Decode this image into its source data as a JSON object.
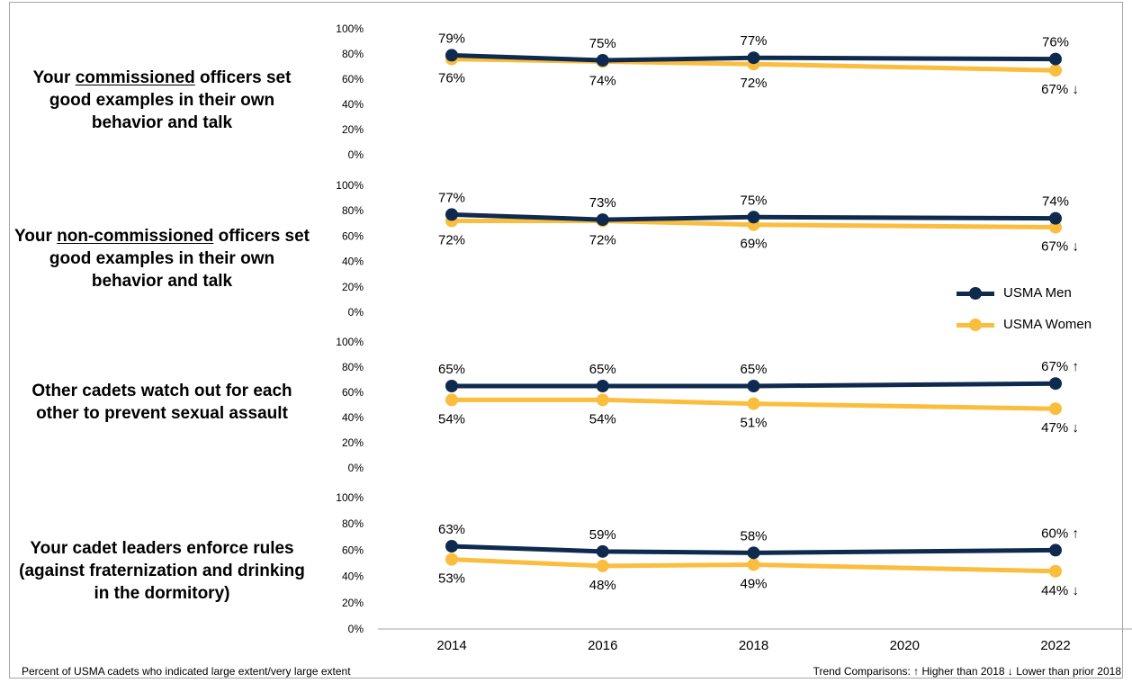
{
  "colors": {
    "men": "#0f2a4f",
    "women": "#fbbd3e",
    "axis": "#a6a6a6",
    "frame": "#a6a6a6"
  },
  "questions": [
    {
      "pre": "Your ",
      "underlined": "commissioned",
      "post": " officers set good examples in their own behavior and talk"
    },
    {
      "pre": "Your ",
      "underlined": "non-commissioned",
      "post": " officers set good examples in their own behavior and talk"
    },
    {
      "pre": "Other cadets watch out for each other to prevent sexual assault",
      "underlined": "",
      "post": ""
    },
    {
      "pre": "Your cadet leaders enforce rules (against fraternization and drinking in the dormitory)",
      "underlined": "",
      "post": ""
    }
  ],
  "legend": {
    "men": "USMA Men",
    "women": "USMA Women"
  },
  "footer": {
    "left": "Percent of USMA cadets who indicated large extent/very large extent",
    "right": "Trend Comparisons:   ↑ Higher than 2018  ↓ Lower than prior 2018"
  },
  "chart_data": [
    {
      "type": "line",
      "x": [
        2014,
        2016,
        2018,
        2022
      ],
      "ylim": [
        0,
        100
      ],
      "yticks": [
        "0%",
        "20%",
        "40%",
        "60%",
        "80%",
        "100%"
      ],
      "series": [
        {
          "name": "USMA Men",
          "values": [
            79,
            75,
            77,
            76
          ],
          "labels": [
            "79%",
            "75%",
            "77%",
            "76%"
          ],
          "markers": [
            "",
            "",
            "",
            ""
          ]
        },
        {
          "name": "USMA Women",
          "values": [
            76,
            74,
            72,
            67
          ],
          "labels": [
            "76%",
            "74%",
            "72%",
            "67%"
          ],
          "markers": [
            "",
            "",
            "",
            "↓"
          ]
        }
      ]
    },
    {
      "type": "line",
      "x": [
        2014,
        2016,
        2018,
        2022
      ],
      "ylim": [
        0,
        100
      ],
      "yticks": [
        "0%",
        "20%",
        "40%",
        "60%",
        "80%",
        "100%"
      ],
      "series": [
        {
          "name": "USMA Men",
          "values": [
            77,
            73,
            75,
            74
          ],
          "labels": [
            "77%",
            "73%",
            "75%",
            "74%"
          ],
          "markers": [
            "",
            "",
            "",
            ""
          ]
        },
        {
          "name": "USMA Women",
          "values": [
            72,
            72,
            69,
            67
          ],
          "labels": [
            "72%",
            "72%",
            "69%",
            "67%"
          ],
          "markers": [
            "",
            "",
            "",
            "↓"
          ]
        }
      ]
    },
    {
      "type": "line",
      "x": [
        2014,
        2016,
        2018,
        2022
      ],
      "ylim": [
        0,
        100
      ],
      "yticks": [
        "0%",
        "20%",
        "40%",
        "60%",
        "80%",
        "100%"
      ],
      "series": [
        {
          "name": "USMA Men",
          "values": [
            65,
            65,
            65,
            67
          ],
          "labels": [
            "65%",
            "65%",
            "65%",
            "67%"
          ],
          "markers": [
            "",
            "",
            "",
            "↑"
          ]
        },
        {
          "name": "USMA Women",
          "values": [
            54,
            54,
            51,
            47
          ],
          "labels": [
            "54%",
            "54%",
            "51%",
            "47%"
          ],
          "markers": [
            "",
            "",
            "",
            "↓"
          ]
        }
      ]
    },
    {
      "type": "line",
      "x": [
        2014,
        2016,
        2018,
        2022
      ],
      "ylim": [
        0,
        100
      ],
      "yticks": [
        "0%",
        "20%",
        "40%",
        "60%",
        "80%",
        "100%"
      ],
      "series": [
        {
          "name": "USMA Men",
          "values": [
            63,
            59,
            58,
            60
          ],
          "labels": [
            "63%",
            "59%",
            "58%",
            "60%"
          ],
          "markers": [
            "",
            "",
            "",
            "↑"
          ]
        },
        {
          "name": "USMA Women",
          "values": [
            53,
            48,
            49,
            44
          ],
          "labels": [
            "53%",
            "48%",
            "49%",
            "44%"
          ],
          "markers": [
            "",
            "",
            "",
            "↓"
          ]
        }
      ]
    }
  ],
  "x_axis": {
    "ticks": [
      "2014",
      "2016",
      "2018",
      "2020",
      "2022"
    ],
    "range": [
      2014,
      2022
    ]
  }
}
